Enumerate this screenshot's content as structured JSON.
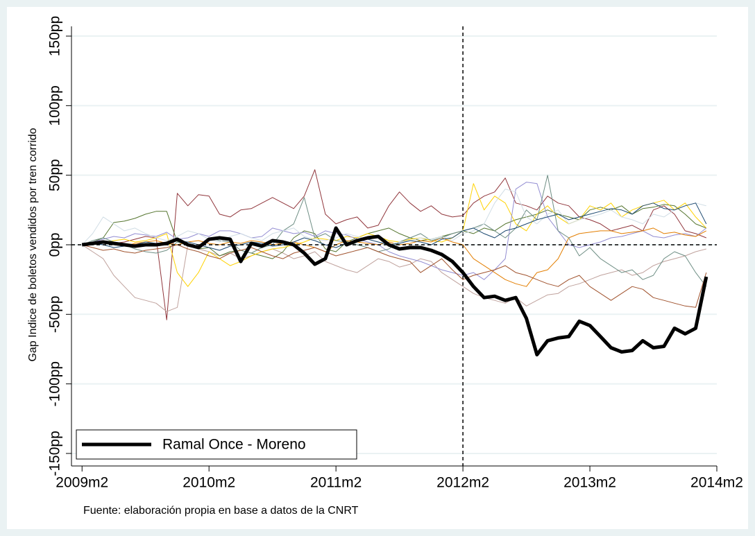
{
  "chart_data": {
    "type": "line",
    "y_label": "Gap Indice de boletos vendidos por tren corrido",
    "note": "Fuente: elaboración propia en base a datos de la CNRT",
    "x": [
      "2009m2",
      "2009m3",
      "2009m4",
      "2009m5",
      "2009m6",
      "2009m7",
      "2009m8",
      "2009m9",
      "2009m10",
      "2009m11",
      "2009m12",
      "2010m1",
      "2010m2",
      "2010m3",
      "2010m4",
      "2010m5",
      "2010m6",
      "2010m7",
      "2010m8",
      "2010m9",
      "2010m10",
      "2010m11",
      "2010m12",
      "2011m1",
      "2011m2",
      "2011m3",
      "2011m4",
      "2011m5",
      "2011m6",
      "2011m7",
      "2011m8",
      "2011m9",
      "2011m10",
      "2011m11",
      "2011m12",
      "2012m1",
      "2012m2",
      "2012m3",
      "2012m4",
      "2012m5",
      "2012m6",
      "2012m7",
      "2012m8",
      "2012m9",
      "2012m10",
      "2012m11",
      "2012m12",
      "2013m1",
      "2013m2",
      "2013m3",
      "2013m4",
      "2013m5",
      "2013m6",
      "2013m7",
      "2013m8",
      "2013m9",
      "2013m10",
      "2013m11",
      "2013m12",
      "2014m1"
    ],
    "xlim": [
      "2009m1",
      "2014m2"
    ],
    "xticks": [
      "2009m2",
      "2010m2",
      "2011m2",
      "2012m2",
      "2013m2",
      "2014m2"
    ],
    "ylim": [
      -159,
      157
    ],
    "yticks": [
      {
        "value": -150,
        "label": "-150pp"
      },
      {
        "value": -100,
        "label": "-100pp"
      },
      {
        "value": -50,
        "label": "-50pp"
      },
      {
        "value": 0,
        "label": "0pp"
      },
      {
        "value": 50,
        "label": "50pp"
      },
      {
        "value": 100,
        "label": "100pp"
      },
      {
        "value": 150,
        "label": "150pp"
      }
    ],
    "grid": true,
    "xline": "2012m2",
    "yline": 0,
    "legend_position": "bottom-left",
    "series": [
      {
        "color": "#90353b",
        "width": 1,
        "values": [
          0,
          2,
          3,
          1,
          2,
          4,
          6,
          5,
          -54,
          37,
          28,
          36,
          35,
          22,
          20,
          25,
          26,
          30,
          34,
          30,
          26,
          35,
          54,
          22,
          15,
          18,
          20,
          12,
          14,
          28,
          38,
          30,
          24,
          28,
          22,
          20,
          21,
          30,
          35,
          38,
          48,
          30,
          28,
          25,
          35,
          30,
          28,
          20,
          18,
          15,
          10,
          12,
          14,
          10,
          25,
          28,
          22,
          10,
          8,
          5
        ]
      },
      {
        "color": "#bfa19c",
        "width": 1,
        "values": [
          0,
          -5,
          -10,
          -22,
          -30,
          -38,
          -40,
          -42,
          -48,
          -45,
          0,
          -3,
          -5,
          -8,
          -6,
          -10,
          -8,
          -5,
          -3,
          -6,
          -10,
          -8,
          -5,
          -12,
          -15,
          -18,
          -20,
          -15,
          -10,
          -12,
          -16,
          -14,
          -10,
          -12,
          -20,
          -25,
          -30,
          -35,
          -38,
          -40,
          -42,
          -38,
          -44,
          -40,
          -36,
          -35,
          -30,
          -28,
          -25,
          -22,
          -20,
          -18,
          -22,
          -20,
          -15,
          -12,
          -10,
          -8,
          -5,
          -3
        ]
      },
      {
        "color": "#55752f",
        "width": 1,
        "values": [
          0,
          2,
          5,
          16,
          17,
          19,
          22,
          24,
          24,
          2,
          1,
          -3,
          -2,
          -8,
          -5,
          -4,
          -6,
          -8,
          -10,
          -5,
          5,
          10,
          8,
          -3,
          -5,
          2,
          5,
          8,
          10,
          12,
          8,
          5,
          3,
          4,
          6,
          8,
          10,
          8,
          12,
          10,
          15,
          18,
          20,
          22,
          25,
          22,
          20,
          18,
          25,
          27,
          25,
          28,
          22,
          26,
          27,
          29,
          28,
          22,
          15,
          12
        ]
      },
      {
        "color": "#ffd200",
        "width": 1,
        "values": [
          0,
          1,
          2,
          3,
          4,
          2,
          3,
          5,
          8,
          -20,
          -30,
          -20,
          -5,
          -10,
          -15,
          -12,
          -8,
          -5,
          -3,
          -2,
          0,
          2,
          5,
          4,
          3,
          6,
          5,
          8,
          6,
          3,
          2,
          4,
          5,
          3,
          2,
          5,
          10,
          44,
          25,
          35,
          30,
          15,
          10,
          22,
          28,
          20,
          15,
          18,
          28,
          25,
          30,
          20,
          25,
          28,
          30,
          32,
          25,
          30,
          20,
          12
        ]
      },
      {
        "color": "#938dd2",
        "width": 1,
        "values": [
          0,
          2,
          4,
          6,
          5,
          8,
          7,
          6,
          9,
          4,
          5,
          8,
          6,
          10,
          10,
          8,
          5,
          6,
          12,
          10,
          8,
          9,
          6,
          10,
          8,
          7,
          4,
          2,
          0,
          -5,
          -8,
          -10,
          -12,
          -15,
          -18,
          -20,
          -22,
          -20,
          -25,
          -18,
          -10,
          40,
          45,
          44,
          20,
          10,
          0,
          -2,
          0,
          2,
          5,
          6,
          8,
          10,
          6,
          5,
          7,
          8,
          6,
          12
        ]
      },
      {
        "color": "#e37e00",
        "width": 1,
        "values": [
          0,
          1,
          2,
          0,
          -1,
          1,
          2,
          3,
          1,
          0,
          2,
          3,
          1,
          0,
          2,
          1,
          3,
          2,
          0,
          1,
          2,
          0,
          -2,
          -5,
          0,
          3,
          2,
          1,
          0,
          2,
          0,
          1,
          3,
          2,
          5,
          2,
          0,
          -10,
          -15,
          -20,
          -25,
          -28,
          -30,
          -20,
          -18,
          -10,
          5,
          8,
          9,
          10,
          10,
          8,
          9,
          10,
          12,
          8,
          9,
          7,
          6,
          10
        ]
      },
      {
        "color": "#6e8e84",
        "width": 1,
        "values": [
          0,
          3,
          5,
          2,
          0,
          -3,
          -5,
          -6,
          -4,
          2,
          0,
          -2,
          5,
          3,
          2,
          -4,
          -6,
          -2,
          0,
          10,
          15,
          34,
          5,
          8,
          3,
          2,
          0,
          -2,
          -5,
          -3,
          2,
          5,
          8,
          3,
          5,
          8,
          10,
          12,
          15,
          10,
          5,
          12,
          25,
          18,
          50,
          10,
          5,
          -8,
          -2,
          -10,
          -15,
          -20,
          -18,
          -25,
          -22,
          -10,
          -5,
          -8,
          -20,
          -30
        ]
      },
      {
        "color": "#d0dde5",
        "width": 1,
        "values": [
          0,
          8,
          20,
          15,
          10,
          12,
          8,
          5,
          3,
          6,
          10,
          8,
          4,
          2,
          6,
          8,
          5,
          3,
          8,
          10,
          12,
          6,
          4,
          3,
          5,
          8,
          6,
          4,
          2,
          0,
          2,
          3,
          5,
          4,
          6,
          3,
          8,
          10,
          15,
          30,
          40,
          38,
          20,
          15,
          22,
          25,
          15,
          18,
          20,
          22,
          25,
          20,
          18,
          15,
          22,
          20,
          25,
          28,
          30,
          28
        ]
      },
      {
        "color": "#a0522d",
        "width": 1,
        "values": [
          0,
          -2,
          -4,
          -3,
          -5,
          -6,
          -4,
          -3,
          -2,
          0,
          -3,
          -5,
          -8,
          -10,
          -6,
          -4,
          -2,
          -5,
          -8,
          -10,
          -6,
          -4,
          -2,
          -5,
          -8,
          -6,
          -4,
          -2,
          -5,
          -8,
          -10,
          -12,
          -20,
          -15,
          -10,
          -18,
          -25,
          -22,
          -20,
          -18,
          -15,
          -20,
          -22,
          -25,
          -28,
          -30,
          -25,
          -22,
          -30,
          -35,
          -40,
          -35,
          -30,
          -32,
          -38,
          -40,
          -42,
          -44,
          -45,
          -20
        ]
      },
      {
        "color": "#1a476f",
        "width": 1,
        "values": [
          0,
          1,
          0,
          -2,
          -1,
          0,
          2,
          1,
          0,
          3,
          2,
          0,
          -2,
          -4,
          -1,
          0,
          2,
          1,
          -1,
          0,
          2,
          5,
          3,
          0,
          -2,
          1,
          3,
          4,
          2,
          0,
          1,
          3,
          2,
          0,
          4,
          5,
          10,
          12,
          8,
          5,
          10,
          12,
          15,
          18,
          20,
          22,
          18,
          20,
          22,
          24,
          26,
          25,
          22,
          28,
          30,
          26,
          25,
          28,
          30,
          15
        ]
      },
      {
        "name": "Ramal Once - Moreno",
        "color": "#000000",
        "width": 5,
        "values": [
          0,
          1,
          2,
          1,
          0,
          -1,
          0,
          0,
          1,
          4,
          0,
          -2,
          4,
          5,
          4,
          -12,
          1,
          -1,
          3,
          2,
          0,
          -6,
          -14,
          -10,
          12,
          0,
          3,
          5,
          6,
          0,
          -3,
          -2,
          -2,
          -4,
          -7,
          -12,
          -20,
          -30,
          -38,
          -37,
          -40,
          -38,
          -53,
          -79,
          -69,
          -67,
          -66,
          -55,
          -58,
          -66,
          -74,
          -77,
          -76,
          -69,
          -74,
          -73,
          -60,
          -64,
          -60,
          -23
        ]
      }
    ]
  }
}
